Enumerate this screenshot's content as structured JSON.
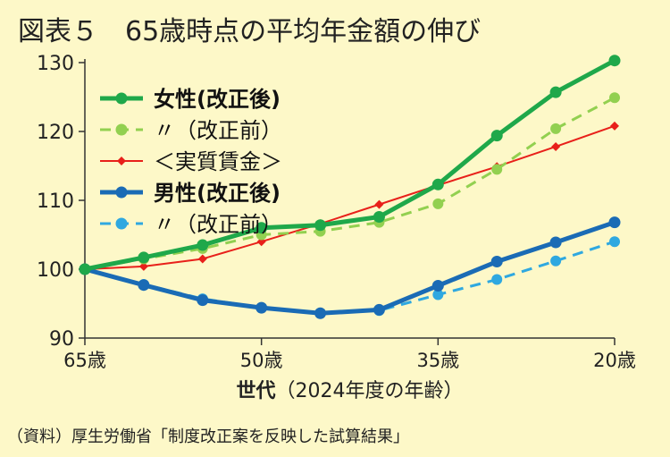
{
  "title": "図表５　65歳時点の平均年金額の伸び",
  "source": "（資料）厚生労働省「制度改正案を反映した試算結果」",
  "chart_data": {
    "type": "line",
    "x": [
      0,
      1,
      2,
      3,
      4,
      5,
      6,
      7,
      8,
      9
    ],
    "x_tick_positions": [
      0,
      3,
      6,
      9
    ],
    "x_tick_labels": [
      "65歳",
      "50歳",
      "35歳",
      "20歳"
    ],
    "xlabel_bold": "世代",
    "xlabel_rest": "（2024年度の年齢）",
    "ylabel": "",
    "ylim": [
      90,
      130
    ],
    "y_ticks": [
      90,
      100,
      110,
      120,
      130
    ],
    "grid": false,
    "legend_position": "top-left",
    "series": [
      {
        "name": "女性(改正後)",
        "color": "#1fa84a",
        "dash": false,
        "marker": "circle",
        "bold": true,
        "values": [
          100.0,
          101.7,
          103.5,
          106.0,
          106.4,
          107.6,
          112.3,
          119.4,
          125.7,
          130.3
        ]
      },
      {
        "name": "〃（改正前）",
        "color": "#92d050",
        "dash": true,
        "marker": "circle",
        "bold": false,
        "values": [
          100.0,
          101.5,
          103.0,
          105.0,
          105.5,
          106.8,
          109.5,
          114.5,
          120.4,
          124.9
        ]
      },
      {
        "name": "＜実質賃金＞",
        "color": "#e8201a",
        "dash": false,
        "marker": "diamond",
        "bold": false,
        "values": [
          100.0,
          100.4,
          101.5,
          104.0,
          106.6,
          109.4,
          112.2,
          114.9,
          117.8,
          120.8
        ]
      },
      {
        "name": "男性(改正後)",
        "color": "#1a6bb5",
        "dash": false,
        "marker": "circle",
        "bold": true,
        "values": [
          100.0,
          97.7,
          95.5,
          94.4,
          93.6,
          94.1,
          97.6,
          101.1,
          103.9,
          106.8
        ]
      },
      {
        "name": "〃（改正前）",
        "color": "#2fa8e0",
        "dash": true,
        "marker": "circle",
        "bold": false,
        "values": [
          100.0,
          97.8,
          95.7,
          94.4,
          93.6,
          94.0,
          96.3,
          98.5,
          101.2,
          104.0
        ]
      }
    ]
  }
}
